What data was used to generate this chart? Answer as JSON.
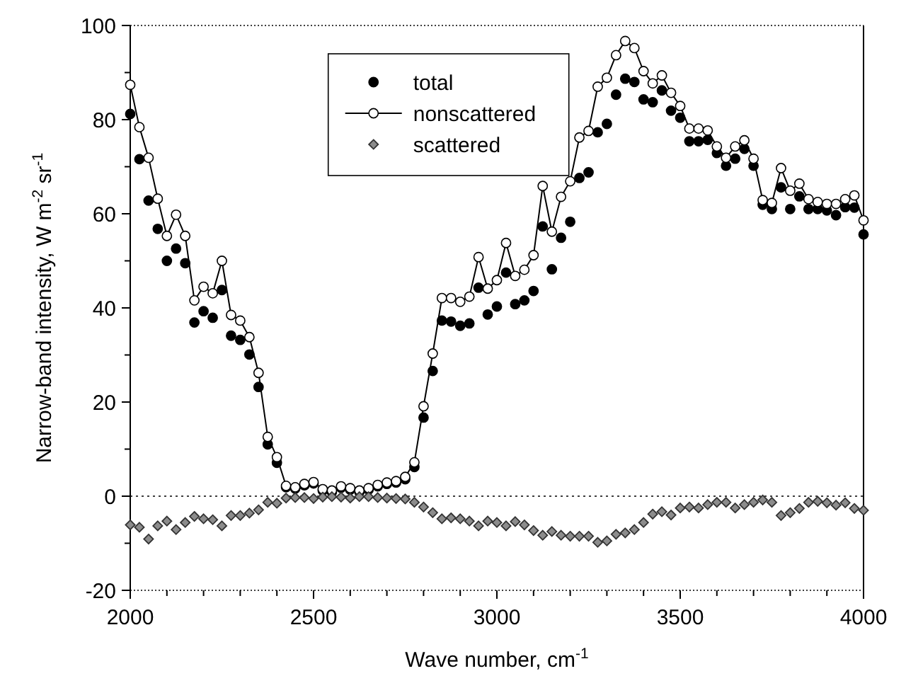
{
  "chart_data": {
    "type": "scatter",
    "xlabel": "Wave number, cm$^{-1}$",
    "ylabel": "Narrow-band intensity, W m$^{-2}$ sr$^{-1}$",
    "x": [
      2000,
      2025,
      2050,
      2075,
      2100,
      2125,
      2150,
      2175,
      2200,
      2225,
      2250,
      2275,
      2300,
      2325,
      2350,
      2375,
      2400,
      2425,
      2450,
      2475,
      2500,
      2525,
      2550,
      2575,
      2600,
      2625,
      2650,
      2675,
      2700,
      2725,
      2750,
      2775,
      2800,
      2825,
      2850,
      2875,
      2900,
      2925,
      2950,
      2975,
      3000,
      3025,
      3050,
      3075,
      3100,
      3125,
      3150,
      3175,
      3200,
      3225,
      3250,
      3275,
      3300,
      3325,
      3350,
      3375,
      3400,
      3425,
      3450,
      3475,
      3500,
      3525,
      3550,
      3575,
      3600,
      3625,
      3650,
      3675,
      3700,
      3725,
      3750,
      3775,
      3800,
      3825,
      3850,
      3875,
      3900,
      3925,
      3950,
      3975,
      4000
    ],
    "series": [
      {
        "name": "total",
        "type": "scatter",
        "marker": "circle",
        "color": "#000000",
        "values": [
          81.2,
          71.6,
          62.8,
          56.8,
          50.0,
          52.6,
          49.5,
          36.9,
          39.3,
          37.9,
          43.8,
          34.1,
          33.2,
          30.1,
          23.2,
          11.0,
          7.1,
          1.9,
          1.6,
          2.3,
          2.7,
          1.2,
          0.9,
          1.8,
          1.4,
          0.9,
          1.4,
          2.1,
          2.6,
          2.9,
          3.6,
          6.2,
          16.7,
          26.6,
          37.3,
          37.1,
          36.2,
          36.7,
          44.3,
          38.6,
          40.3,
          47.5,
          40.8,
          41.6,
          43.6,
          57.3,
          48.2,
          54.9,
          58.3,
          67.6,
          68.8,
          77.3,
          79.1,
          85.3,
          88.7,
          88.0,
          84.3,
          83.7,
          86.2,
          81.9,
          80.4,
          75.4,
          75.4,
          75.7,
          72.9,
          70.2,
          71.7,
          73.8,
          70.2,
          61.9,
          61.0,
          65.6,
          61.0,
          63.7,
          61.0,
          61.0,
          60.7,
          59.7,
          61.4,
          61.3,
          55.6
        ]
      },
      {
        "name": "nonscattered",
        "type": "line",
        "marker": "circle",
        "line_style": "solid",
        "color": "#000000",
        "values": [
          87.4,
          78.4,
          71.9,
          63.2,
          55.3,
          59.8,
          55.3,
          41.6,
          44.5,
          43.1,
          50.0,
          38.5,
          37.3,
          33.8,
          26.2,
          12.6,
          8.3,
          2.2,
          1.9,
          2.6,
          3.0,
          1.5,
          1.2,
          2.1,
          1.7,
          1.2,
          1.7,
          2.4,
          2.9,
          3.2,
          4.1,
          7.2,
          19.1,
          30.3,
          42.1,
          42.1,
          41.3,
          42.4,
          50.8,
          44.1,
          45.9,
          53.8,
          46.8,
          48.1,
          51.2,
          65.9,
          56.2,
          63.6,
          66.9,
          76.2,
          77.6,
          87.0,
          88.9,
          93.7,
          96.7,
          95.2,
          90.3,
          87.7,
          89.4,
          85.7,
          82.9,
          78.1,
          78.1,
          77.7,
          74.3,
          71.9,
          74.3,
          75.6,
          71.7,
          62.9,
          62.3,
          69.7,
          64.9,
          66.4,
          63.1,
          62.5,
          62.1,
          62.1,
          63.1,
          63.9,
          58.6
        ]
      },
      {
        "name": "scattered",
        "type": "scatter",
        "marker": "diamond",
        "color": "#8c8c8c",
        "values": [
          -6.1,
          -6.6,
          -9.1,
          -6.3,
          -5.3,
          -7.1,
          -5.6,
          -4.3,
          -4.8,
          -5.0,
          -6.3,
          -4.1,
          -4.1,
          -3.6,
          -2.9,
          -1.3,
          -1.5,
          -0.4,
          -0.3,
          -0.3,
          -0.5,
          -0.2,
          -0.1,
          -0.2,
          -0.4,
          -0.1,
          -0.1,
          -0.3,
          -0.4,
          -0.5,
          -0.6,
          -1.3,
          -2.3,
          -3.5,
          -4.8,
          -4.6,
          -4.8,
          -5.3,
          -6.3,
          -5.3,
          -5.6,
          -6.3,
          -5.4,
          -6.1,
          -7.3,
          -8.3,
          -7.5,
          -8.3,
          -8.5,
          -8.5,
          -8.5,
          -9.8,
          -9.5,
          -8.1,
          -7.8,
          -7.1,
          -5.6,
          -3.8,
          -3.3,
          -4.0,
          -2.5,
          -2.3,
          -2.5,
          -1.8,
          -1.3,
          -1.3,
          -2.5,
          -1.8,
          -1.3,
          -0.8,
          -1.3,
          -4.1,
          -3.5,
          -2.6,
          -1.3,
          -1.1,
          -1.4,
          -1.9,
          -1.4,
          -2.6,
          -3.0
        ]
      }
    ],
    "xlim": [
      2000,
      4000
    ],
    "xticks": [
      2000,
      {
        "value": 2100,
        "label": null
      },
      {
        "value": 2200,
        "label": null
      },
      {
        "value": 2300,
        "label": null
      },
      {
        "value": 2400,
        "label": null
      },
      2500,
      {
        "value": 2600,
        "label": null
      },
      {
        "value": 2700,
        "label": null
      },
      {
        "value": 2800,
        "label": null
      },
      {
        "value": 2900,
        "label": null
      },
      3000,
      {
        "value": 3100,
        "label": null
      },
      {
        "value": 3200,
        "label": null
      },
      {
        "value": 3300,
        "label": null
      },
      {
        "value": 3400,
        "label": null
      },
      3500,
      {
        "value": 3600,
        "label": null
      },
      {
        "value": 3700,
        "label": null
      },
      {
        "value": 3800,
        "label": null
      },
      {
        "value": 3900,
        "label": null
      },
      4000
    ],
    "ylim": [
      -20,
      100
    ],
    "yticks": [
      -20,
      {
        "value": -10,
        "label": null
      },
      0,
      {
        "value": 10,
        "label": null
      },
      20,
      {
        "value": 30,
        "label": null
      },
      40,
      {
        "value": 50,
        "label": null
      },
      60,
      {
        "value": 70,
        "label": null
      },
      80,
      {
        "value": 90,
        "label": null
      },
      100
    ],
    "ref_lines": [
      {
        "axis": "y",
        "value": 0,
        "line_style": "dotted",
        "color": "#000000"
      }
    ],
    "grid": false,
    "legend": "top left"
  }
}
